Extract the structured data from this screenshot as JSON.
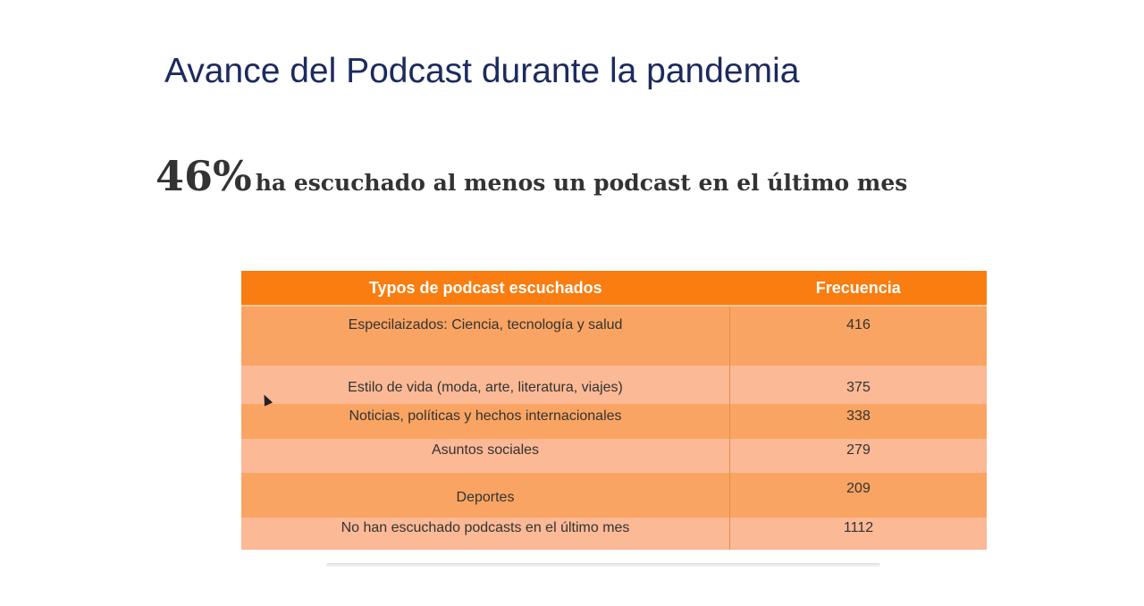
{
  "slide": {
    "title": "Avance del Podcast durante la pandemia",
    "stat_value": "46%",
    "stat_text": "ha escuchado al menos un podcast en el último mes"
  },
  "table": {
    "headers": [
      "Typos de podcast escuchados",
      "Frecuencia"
    ],
    "rows": [
      {
        "type": "Especilaizados: Ciencia, tecnología y salud",
        "freq": "416"
      },
      {
        "type": "Estilo de vida (moda, arte, literatura, viajes)",
        "freq": "375"
      },
      {
        "type": "Noticias, políticas y hechos internacionales",
        "freq": "338"
      },
      {
        "type": "Asuntos sociales",
        "freq": "279"
      },
      {
        "type": "Deportes",
        "freq": "209"
      },
      {
        "type": "No han escuchado podcasts en el último mes",
        "freq": "1112"
      }
    ]
  }
}
